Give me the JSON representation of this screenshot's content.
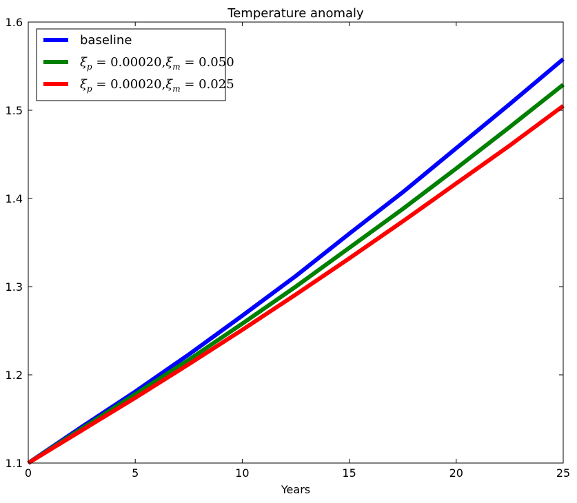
{
  "chart_data": {
    "type": "line",
    "title": "Temperature anomaly",
    "xlabel": "Years",
    "ylabel": "",
    "xlim": [
      0,
      25
    ],
    "ylim": [
      1.1,
      1.6
    ],
    "xticks": [
      0,
      5,
      10,
      15,
      20,
      25
    ],
    "xtick_labels": [
      "0",
      "5",
      "10",
      "15",
      "20",
      "25"
    ],
    "yticks": [
      1.1,
      1.2,
      1.3,
      1.4,
      1.5,
      1.6
    ],
    "ytick_labels": [
      "1.1",
      "1.2",
      "1.3",
      "1.4",
      "1.5",
      "1.6"
    ],
    "grid": false,
    "legend_position": "top-left",
    "x": [
      0,
      2.5,
      5,
      7.5,
      10,
      12.5,
      15,
      17.5,
      20,
      22.5,
      25
    ],
    "series": [
      {
        "name": "baseline",
        "color": "#0000ff",
        "values": [
          1.1,
          1.141,
          1.181,
          1.223,
          1.267,
          1.312,
          1.36,
          1.407,
          1.457,
          1.507,
          1.558
        ]
      },
      {
        "name": "ξp = 0.00020, ξm = 0.050",
        "name_main_1": "ξ",
        "name_sub_1": "p",
        "name_rest_1": " = 0.00020,",
        "name_main_2": "ξ",
        "name_sub_2": "m",
        "name_rest_2": " = 0.050",
        "color": "#008000",
        "values": [
          1.1,
          1.139,
          1.178,
          1.217,
          1.258,
          1.3,
          1.344,
          1.388,
          1.434,
          1.481,
          1.529
        ]
      },
      {
        "name": "ξp = 0.00020, ξm = 0.025",
        "name_main_1": "ξ",
        "name_sub_1": "p",
        "name_rest_1": " = 0.00020,",
        "name_main_2": "ξ",
        "name_sub_2": "m",
        "name_rest_2": " = 0.025",
        "color": "#ff0000",
        "values": [
          1.1,
          1.137,
          1.174,
          1.212,
          1.251,
          1.291,
          1.332,
          1.374,
          1.417,
          1.46,
          1.505
        ]
      }
    ]
  }
}
